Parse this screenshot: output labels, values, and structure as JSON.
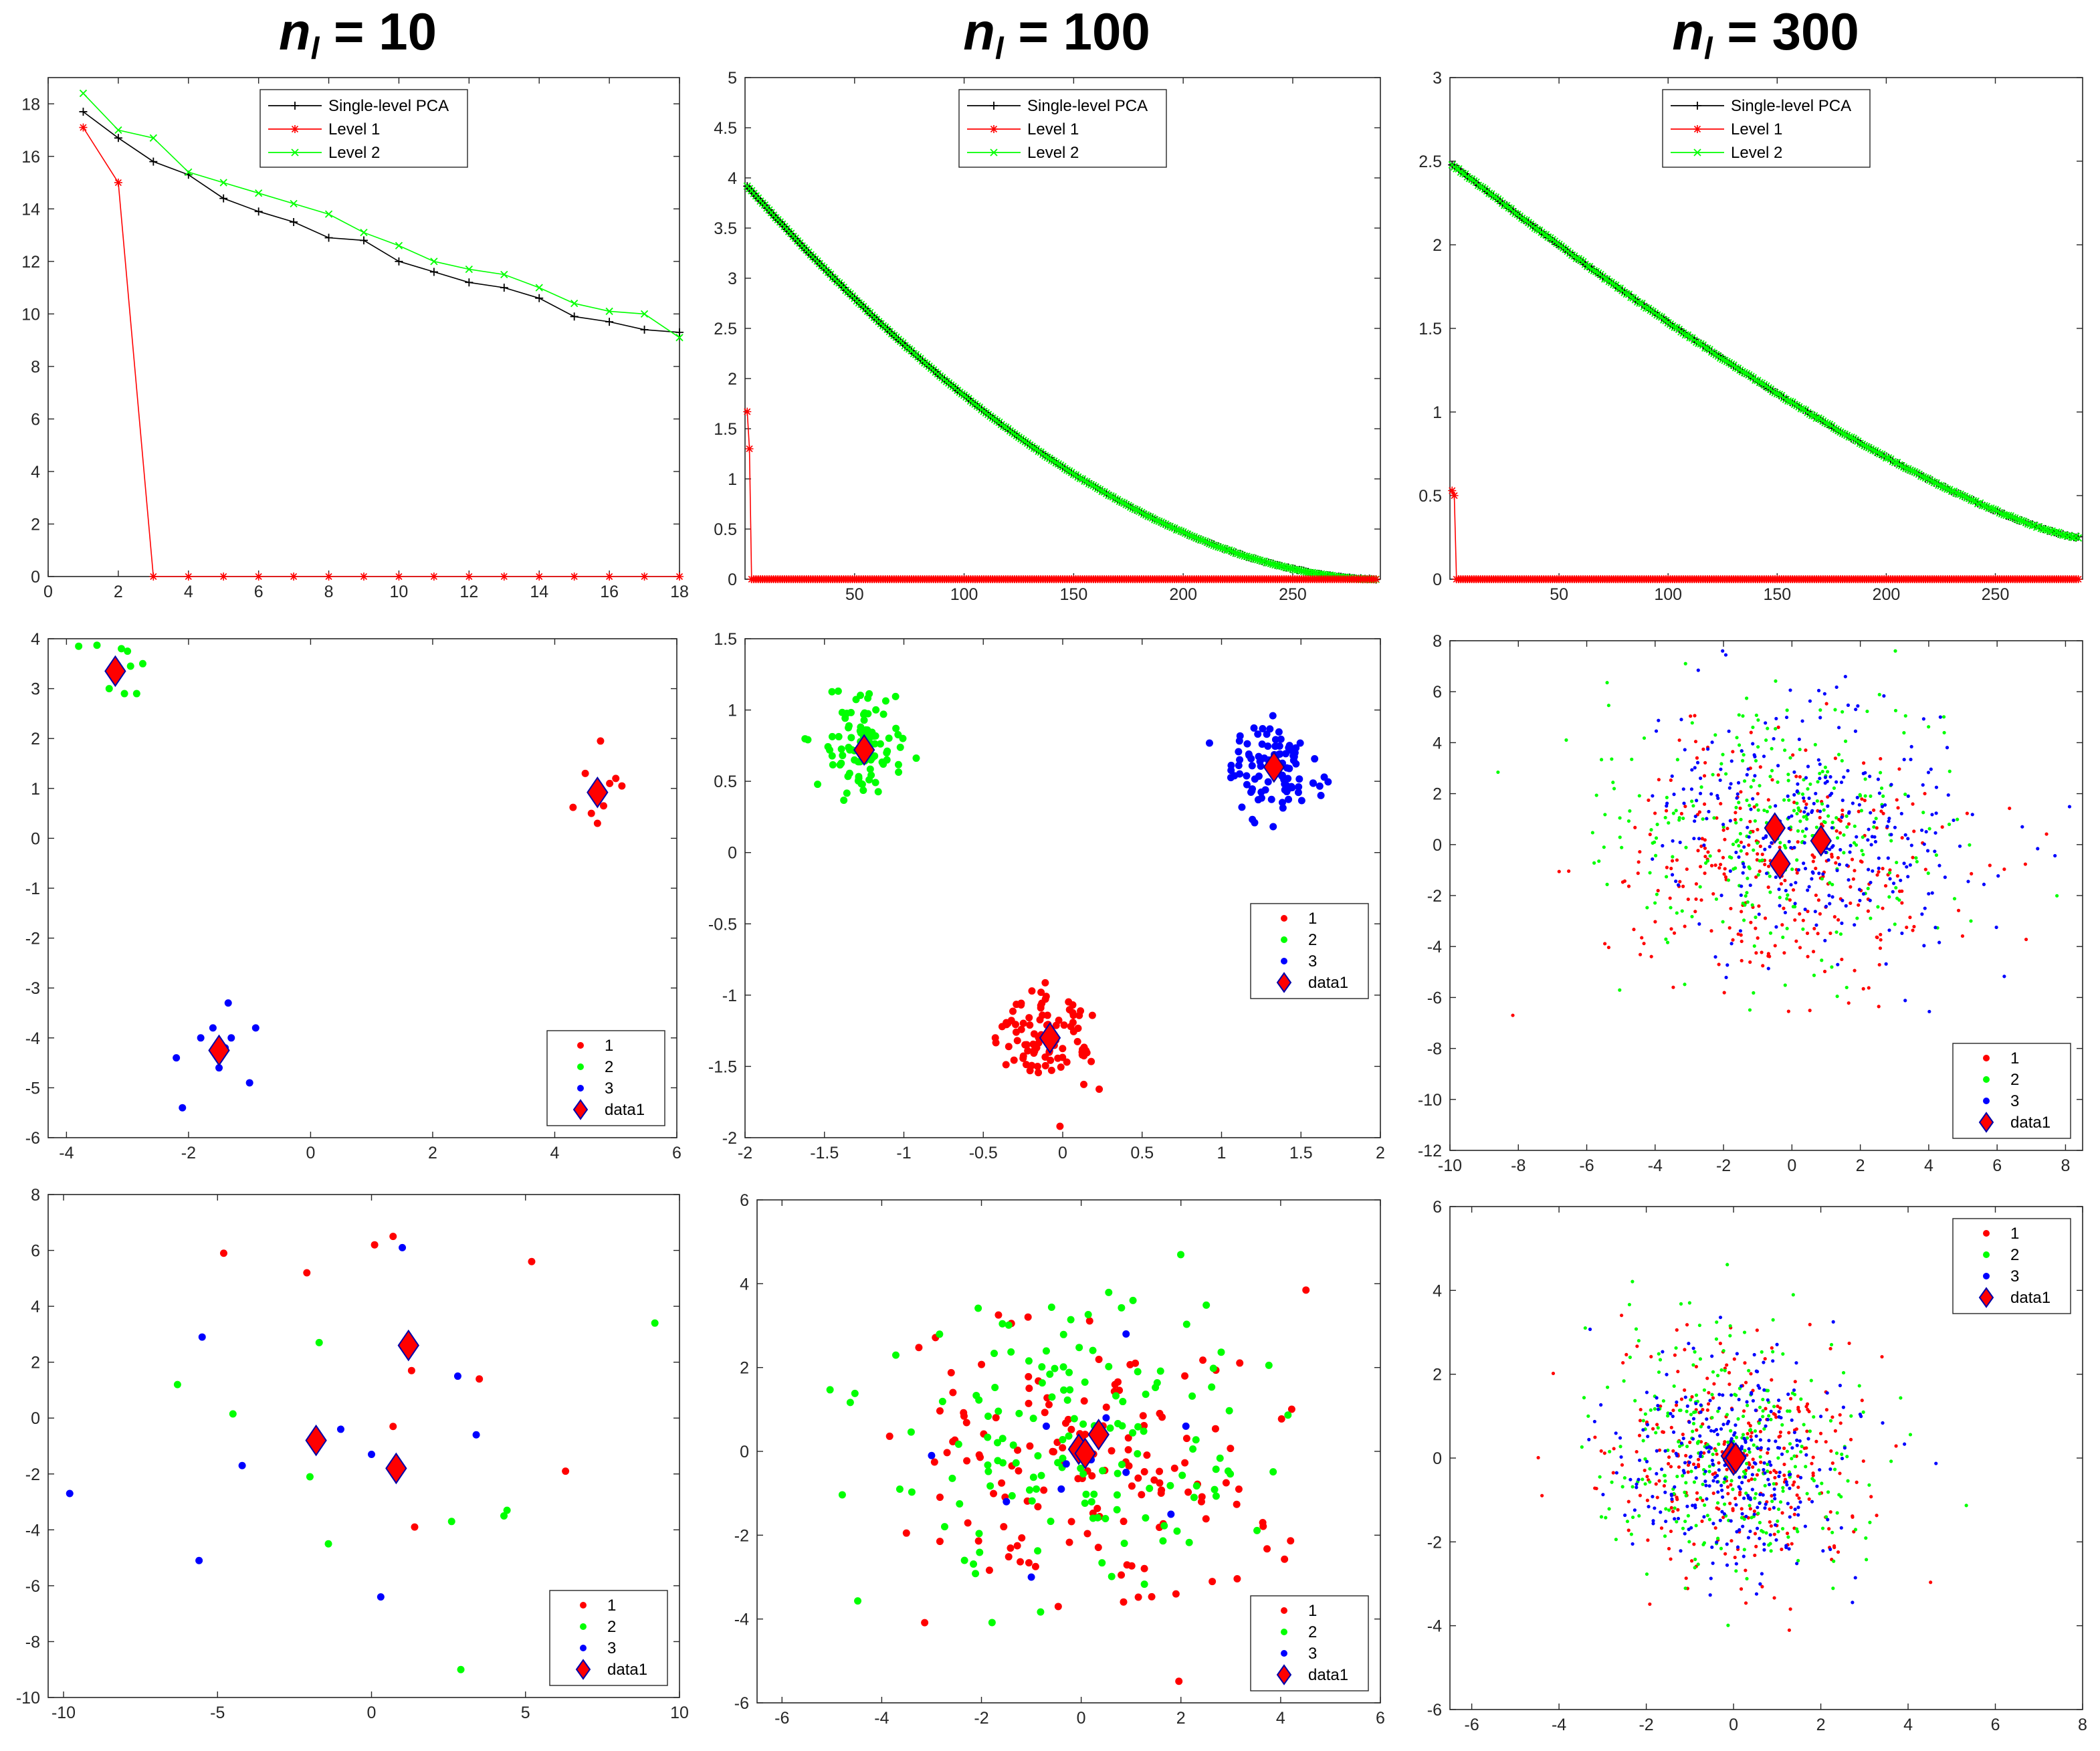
{
  "column_titles": [
    {
      "main": "n",
      "sub": "l",
      "rest": " = 10"
    },
    {
      "main": "n",
      "sub": "l",
      "rest": " = 100"
    },
    {
      "main": "n",
      "sub": "l",
      "rest": " = 300"
    }
  ],
  "colors": {
    "black": "#000000",
    "red": "#ff0000",
    "green": "#00ff00",
    "blue": "#0000ff",
    "axis": "#262626",
    "marker_edge": "#0000aa"
  },
  "chart_data": [
    {
      "id": "line-n10",
      "type": "line",
      "xlim": [
        0,
        18
      ],
      "ylim": [
        0,
        19
      ],
      "xticks": [
        0,
        2,
        4,
        6,
        8,
        10,
        12,
        14,
        16,
        18
      ],
      "yticks": [
        0,
        2,
        4,
        6,
        8,
        10,
        12,
        14,
        16,
        18
      ],
      "legend": {
        "position": "top-center",
        "entries": [
          "Single-level PCA",
          "Level 1",
          "Level 2"
        ]
      },
      "series": [
        {
          "name": "Single-level PCA",
          "color": "black",
          "marker": "+",
          "x": [
            1,
            2,
            3,
            4,
            5,
            6,
            7,
            8,
            9,
            10,
            11,
            12,
            13,
            14,
            15,
            16,
            17,
            18
          ],
          "values": [
            17.7,
            16.7,
            15.8,
            15.3,
            14.4,
            13.9,
            13.5,
            12.9,
            12.8,
            12.0,
            11.6,
            11.2,
            11.0,
            10.6,
            9.9,
            9.7,
            9.4,
            9.3
          ]
        },
        {
          "name": "Level 1",
          "color": "red",
          "marker": "*",
          "x": [
            1,
            2,
            3,
            4,
            5,
            6,
            7,
            8,
            9,
            10,
            11,
            12,
            13,
            14,
            15,
            16,
            17,
            18
          ],
          "values": [
            17.1,
            15.0,
            0,
            0,
            0,
            0,
            0,
            0,
            0,
            0,
            0,
            0,
            0,
            0,
            0,
            0,
            0,
            0
          ]
        },
        {
          "name": "Level 2",
          "color": "green",
          "marker": "x",
          "x": [
            1,
            2,
            3,
            4,
            5,
            6,
            7,
            8,
            9,
            10,
            11,
            12,
            13,
            14,
            15,
            16,
            17,
            18
          ],
          "values": [
            18.4,
            17.0,
            16.7,
            15.4,
            15.0,
            14.6,
            14.2,
            13.8,
            13.1,
            12.6,
            12.0,
            11.7,
            11.5,
            11.0,
            10.4,
            10.1,
            10.0,
            9.1
          ]
        }
      ]
    },
    {
      "id": "line-n100",
      "type": "line",
      "xlim": [
        0,
        290
      ],
      "ylim": [
        0,
        5
      ],
      "xticks": [
        50,
        100,
        150,
        200,
        250
      ],
      "yticks": [
        0,
        0.5,
        1,
        1.5,
        2,
        2.5,
        3,
        3.5,
        4,
        4.5,
        5
      ],
      "legend": {
        "position": "top-center",
        "entries": [
          "Single-level PCA",
          "Level 1",
          "Level 2"
        ]
      },
      "series": [
        {
          "name": "Single-level PCA",
          "color": "black",
          "marker": "+",
          "x_range": [
            1,
            288
          ],
          "start": 3.92,
          "end": 0.0,
          "curve": 1.8,
          "n_markers": 288
        },
        {
          "name": "Level 1",
          "color": "red",
          "marker": "*",
          "x": [
            1,
            2
          ],
          "values": [
            1.67,
            1.3
          ],
          "tail_value": 0,
          "x_range": [
            3,
            288
          ],
          "n_markers": 286
        },
        {
          "name": "Level 2",
          "color": "green",
          "marker": "x",
          "x_range": [
            1,
            288
          ],
          "start": 3.92,
          "end": 0.0,
          "curve": 1.8,
          "n_markers": 288
        }
      ]
    },
    {
      "id": "line-n300",
      "type": "line",
      "xlim": [
        0,
        290
      ],
      "ylim": [
        0,
        3
      ],
      "xticks": [
        50,
        100,
        150,
        200,
        250
      ],
      "yticks": [
        0,
        0.5,
        1,
        1.5,
        2,
        2.5,
        3
      ],
      "legend": {
        "position": "top-center",
        "entries": [
          "Single-level PCA",
          "Level 1",
          "Level 2"
        ]
      },
      "series": [
        {
          "name": "Single-level PCA",
          "color": "black",
          "marker": "+",
          "x_range": [
            1,
            288
          ],
          "start": 2.48,
          "end": 0.25,
          "curve": 1.3,
          "n_markers": 288
        },
        {
          "name": "Level 1",
          "color": "red",
          "marker": "*",
          "x": [
            1,
            2
          ],
          "values": [
            0.53,
            0.5
          ],
          "tail_value": 0,
          "x_range": [
            3,
            288
          ],
          "n_markers": 286
        },
        {
          "name": "Level 2",
          "color": "green",
          "marker": "x",
          "x_range": [
            1,
            288
          ],
          "start": 2.48,
          "end": 0.25,
          "curve": 1.3,
          "n_markers": 288
        }
      ]
    },
    {
      "id": "scatter-n10-level1",
      "type": "scatter",
      "xlim": [
        -4.3,
        6
      ],
      "ylim": [
        -6,
        4
      ],
      "xticks": [
        -4,
        -2,
        0,
        2,
        4,
        6
      ],
      "yticks": [
        -6,
        -5,
        -4,
        -3,
        -2,
        -1,
        0,
        1,
        2,
        3,
        4
      ],
      "legend": {
        "position": "bottom-right",
        "entries": [
          "1",
          "2",
          "3",
          "data1"
        ]
      },
      "series": [
        {
          "name": "1",
          "color": "red",
          "points": [
            [
              4.3,
              0.62
            ],
            [
              4.5,
              1.3
            ],
            [
              4.6,
              0.5
            ],
            [
              4.7,
              0.3
            ],
            [
              4.75,
              1.95
            ],
            [
              4.8,
              0.65
            ],
            [
              4.9,
              1.1
            ],
            [
              5.0,
              1.2
            ],
            [
              5.1,
              1.05
            ],
            [
              4.65,
              0.9
            ]
          ]
        },
        {
          "name": "2",
          "color": "green",
          "points": [
            [
              -3.8,
              3.85
            ],
            [
              -3.5,
              3.87
            ],
            [
              -3.3,
              3.0
            ],
            [
              -3.1,
              3.8
            ],
            [
              -3.05,
              2.9
            ],
            [
              -2.95,
              3.45
            ],
            [
              -2.85,
              2.9
            ],
            [
              -2.75,
              3.5
            ],
            [
              -3.0,
              3.75
            ],
            [
              -3.2,
              3.25
            ]
          ]
        },
        {
          "name": "3",
          "color": "blue",
          "points": [
            [
              -2.2,
              -4.4
            ],
            [
              -2.1,
              -5.4
            ],
            [
              -1.8,
              -4.0
            ],
            [
              -1.6,
              -3.8
            ],
            [
              -1.5,
              -4.6
            ],
            [
              -1.4,
              -4.2
            ],
            [
              -1.35,
              -3.3
            ],
            [
              -1.3,
              -4.0
            ],
            [
              -1.0,
              -4.9
            ],
            [
              -0.9,
              -3.8
            ]
          ]
        },
        {
          "name": "data1",
          "color": "red",
          "marker": "diamond",
          "points": [
            [
              -3.2,
              3.35
            ],
            [
              4.7,
              0.92
            ],
            [
              -1.5,
              -4.25
            ]
          ]
        }
      ]
    },
    {
      "id": "scatter-n100-level1",
      "type": "scatter",
      "xlim": [
        -2,
        2
      ],
      "ylim": [
        -2,
        1.5
      ],
      "xticks": [
        -2,
        -1.5,
        -1,
        -0.5,
        0,
        0.5,
        1,
        1.5,
        2
      ],
      "yticks": [
        -2,
        -1.5,
        -1,
        -0.5,
        0,
        0.5,
        1,
        1.5
      ],
      "legend": {
        "position": "right",
        "entries": [
          "1",
          "2",
          "3",
          "data1"
        ]
      },
      "series": [
        {
          "name": "1",
          "color": "red",
          "cluster": {
            "cx": -0.08,
            "cy": -1.3,
            "sx": 0.15,
            "sy": 0.17,
            "n": 100
          }
        },
        {
          "name": "2",
          "color": "green",
          "cluster": {
            "cx": -1.25,
            "cy": 0.72,
            "sx": 0.14,
            "sy": 0.15,
            "n": 100
          }
        },
        {
          "name": "3",
          "color": "blue",
          "cluster": {
            "cx": 1.33,
            "cy": 0.6,
            "sx": 0.14,
            "sy": 0.15,
            "n": 100
          }
        },
        {
          "name": "data1",
          "color": "red",
          "marker": "diamond",
          "points": [
            [
              -1.25,
              0.72
            ],
            [
              1.33,
              0.6
            ],
            [
              -0.08,
              -1.3
            ]
          ]
        }
      ]
    },
    {
      "id": "scatter-n300-level1",
      "type": "scatter",
      "xlim": [
        -10,
        8.5
      ],
      "ylim": [
        -12,
        8
      ],
      "xticks": [
        -10,
        -8,
        -6,
        -4,
        -2,
        0,
        2,
        4,
        6,
        8
      ],
      "yticks": [
        -12,
        -10,
        -8,
        -6,
        -4,
        -2,
        0,
        2,
        4,
        6,
        8
      ],
      "legend": {
        "position": "bottom-right",
        "entries": [
          "1",
          "2",
          "3",
          "data1"
        ]
      },
      "series": [
        {
          "name": "1",
          "color": "red",
          "cluster": {
            "cx": -0.5,
            "cy": -0.7,
            "sx": 2.6,
            "sy": 2.5,
            "n": 300
          }
        },
        {
          "name": "2",
          "color": "green",
          "cluster": {
            "cx": -0.5,
            "cy": 0.5,
            "sx": 2.6,
            "sy": 2.5,
            "n": 300
          }
        },
        {
          "name": "3",
          "color": "blue",
          "cluster": {
            "cx": 0.9,
            "cy": 0.2,
            "sx": 2.6,
            "sy": 2.5,
            "n": 300
          }
        },
        {
          "name": "data1",
          "color": "red",
          "marker": "diamond",
          "points": [
            [
              -0.5,
              0.65
            ],
            [
              0.85,
              0.15
            ],
            [
              -0.35,
              -0.75
            ]
          ]
        }
      ]
    },
    {
      "id": "scatter-n10-level2",
      "type": "scatter",
      "xlim": [
        -10.5,
        10
      ],
      "ylim": [
        -10,
        8
      ],
      "xticks": [
        -10,
        -5,
        0,
        5,
        10
      ],
      "yticks": [
        -10,
        -8,
        -6,
        -4,
        -2,
        0,
        2,
        4,
        6,
        8
      ],
      "legend": {
        "position": "bottom-right",
        "entries": [
          "1",
          "2",
          "3",
          "data1"
        ]
      },
      "series": [
        {
          "name": "1",
          "color": "red",
          "points": [
            [
              -4.8,
              5.9
            ],
            [
              -2.1,
              5.2
            ],
            [
              0.1,
              6.2
            ],
            [
              0.7,
              6.5
            ],
            [
              5.2,
              5.6
            ],
            [
              0.7,
              -0.3
            ],
            [
              1.3,
              1.7
            ],
            [
              3.5,
              1.4
            ],
            [
              1.4,
              -3.9
            ],
            [
              6.3,
              -1.9
            ]
          ]
        },
        {
          "name": "2",
          "color": "green",
          "points": [
            [
              -6.3,
              1.2
            ],
            [
              -4.5,
              0.15
            ],
            [
              -1.7,
              2.7
            ],
            [
              -2.0,
              -2.1
            ],
            [
              -1.4,
              -4.5
            ],
            [
              2.6,
              -3.7
            ],
            [
              4.3,
              -3.5
            ],
            [
              4.4,
              -3.3
            ],
            [
              9.2,
              3.4
            ],
            [
              2.9,
              -9.0
            ]
          ]
        },
        {
          "name": "3",
          "color": "blue",
          "points": [
            [
              -9.8,
              -2.7
            ],
            [
              -5.5,
              2.9
            ],
            [
              -4.2,
              -1.7
            ],
            [
              -5.6,
              -5.1
            ],
            [
              -1.0,
              -0.4
            ],
            [
              0.0,
              -1.3
            ],
            [
              0.3,
              -6.4
            ],
            [
              1.0,
              6.1
            ],
            [
              2.8,
              1.5
            ],
            [
              3.4,
              -0.6
            ]
          ]
        },
        {
          "name": "data1",
          "color": "red",
          "marker": "diamond",
          "points": [
            [
              1.2,
              2.6
            ],
            [
              -1.8,
              -0.8
            ],
            [
              0.8,
              -1.8
            ]
          ]
        }
      ]
    },
    {
      "id": "scatter-n100-level2",
      "type": "scatter",
      "xlim": [
        -6.5,
        6
      ],
      "ylim": [
        -6,
        6
      ],
      "xticks": [
        -6,
        -4,
        -2,
        0,
        2,
        4,
        6
      ],
      "yticks": [
        -6,
        -4,
        -2,
        0,
        2,
        4,
        6
      ],
      "legend": {
        "position": "bottom-right",
        "entries": [
          "1",
          "2",
          "3",
          "data1"
        ]
      },
      "series": [
        {
          "name": "1",
          "color": "red",
          "cluster": {
            "cx": 0,
            "cy": -0.2,
            "sx": 1.9,
            "sy": 1.7,
            "n": 150
          }
        },
        {
          "name": "2",
          "color": "green",
          "cluster": {
            "cx": 0,
            "cy": 0.3,
            "sx": 1.9,
            "sy": 1.7,
            "n": 150
          }
        },
        {
          "name": "3",
          "color": "blue",
          "points": [
            [
              0.2,
              -0.2
            ],
            [
              -0.7,
              0.6
            ],
            [
              -1.5,
              -1.2
            ],
            [
              0.9,
              -0.5
            ],
            [
              -0.4,
              -0.9
            ],
            [
              0.5,
              0.8
            ],
            [
              -1.0,
              -3.0
            ],
            [
              1.8,
              -1.5
            ],
            [
              2.1,
              0.6
            ],
            [
              -3.0,
              -0.1
            ],
            [
              0.9,
              2.8
            ],
            [
              -0.3,
              -0.3
            ]
          ]
        },
        {
          "name": "data1",
          "color": "red",
          "marker": "diamond",
          "points": [
            [
              0.35,
              0.4
            ],
            [
              -0.05,
              0.05
            ],
            [
              0.08,
              -0.05
            ]
          ]
        }
      ]
    },
    {
      "id": "scatter-n300-level2",
      "type": "scatter",
      "xlim": [
        -6.5,
        8
      ],
      "ylim": [
        -6,
        6
      ],
      "xticks": [
        -6,
        -4,
        -2,
        0,
        2,
        4,
        6,
        8
      ],
      "yticks": [
        -6,
        -4,
        -2,
        0,
        2,
        4,
        6
      ],
      "legend": {
        "position": "top-right",
        "entries": [
          "1",
          "2",
          "3",
          "data1"
        ]
      },
      "series": [
        {
          "name": "1",
          "color": "red",
          "cluster": {
            "cx": 0,
            "cy": 0,
            "sx": 1.5,
            "sy": 1.4,
            "n": 300
          }
        },
        {
          "name": "2",
          "color": "green",
          "cluster": {
            "cx": 0,
            "cy": 0,
            "sx": 1.5,
            "sy": 1.4,
            "n": 300
          }
        },
        {
          "name": "3",
          "color": "blue",
          "cluster": {
            "cx": 0,
            "cy": 0,
            "sx": 1.4,
            "sy": 1.3,
            "n": 300
          }
        },
        {
          "name": "data1",
          "color": "red",
          "marker": "diamond",
          "points": [
            [
              -0.05,
              0.05
            ],
            [
              0.0,
              -0.05
            ],
            [
              0.05,
              0.0
            ]
          ]
        }
      ]
    }
  ]
}
